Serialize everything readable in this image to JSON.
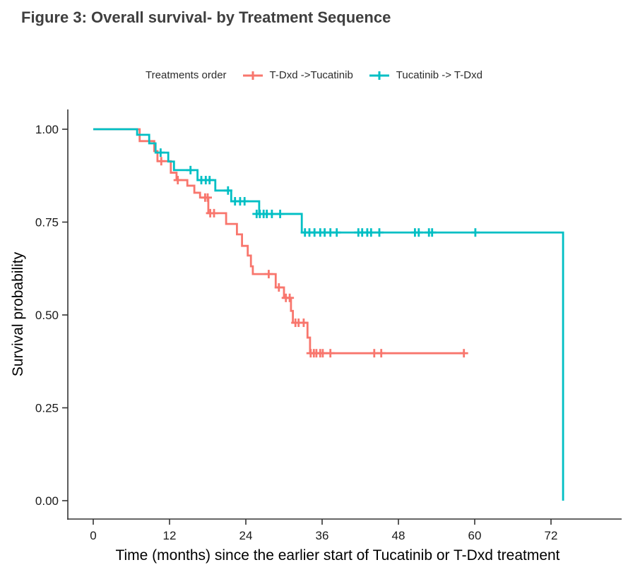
{
  "title": "Figure 3: Overall survival- by Treatment Sequence",
  "chart_data": {
    "type": "line",
    "subtype": "kaplan-meier-step",
    "title": "Figure 3: Overall survival- by Treatment Sequence",
    "legend_title": "Treatments order",
    "legend_position": "top-center",
    "xlabel": "Time (months) since the earlier start of Tucatinib or T-Dxd treatment",
    "ylabel": "Survival probability",
    "xlim": [
      0,
      78
    ],
    "ylim": [
      0,
      1
    ],
    "xticks": [
      0,
      12,
      24,
      36,
      48,
      60,
      72
    ],
    "yticks": [
      "0.00",
      "0.25",
      "0.50",
      "0.75",
      "1.00"
    ],
    "grid": "off",
    "axis_color": "#333333",
    "background": "#ffffff",
    "series": [
      {
        "name": "T-Dxd ->Tucatinib",
        "color": "#F8766D",
        "steps": [
          [
            0,
            1.0
          ],
          [
            7.3,
            0.968
          ],
          [
            9.6,
            0.941
          ],
          [
            10.1,
            0.914
          ],
          [
            12.2,
            0.883
          ],
          [
            13.1,
            0.863
          ],
          [
            14.8,
            0.848
          ],
          [
            15.9,
            0.829
          ],
          [
            16.8,
            0.816
          ],
          [
            18.1,
            0.774
          ],
          [
            20.9,
            0.745
          ],
          [
            22.6,
            0.717
          ],
          [
            23.4,
            0.686
          ],
          [
            24.3,
            0.66
          ],
          [
            24.8,
            0.631
          ],
          [
            25.1,
            0.61
          ],
          [
            28.7,
            0.574
          ],
          [
            30.0,
            0.546
          ],
          [
            31.1,
            0.511
          ],
          [
            31.4,
            0.479
          ],
          [
            33.7,
            0.439
          ],
          [
            34.1,
            0.397
          ]
        ],
        "end_time": 58.3,
        "censors": [
          [
            10.7,
            0.914
          ],
          [
            13.3,
            0.863
          ],
          [
            17.6,
            0.816
          ],
          [
            18.0,
            0.816
          ],
          [
            18.4,
            0.774
          ],
          [
            19.0,
            0.774
          ],
          [
            27.6,
            0.61
          ],
          [
            29.2,
            0.574
          ],
          [
            30.3,
            0.546
          ],
          [
            30.9,
            0.546
          ],
          [
            31.8,
            0.479
          ],
          [
            32.3,
            0.479
          ],
          [
            33.1,
            0.479
          ],
          [
            34.2,
            0.397
          ],
          [
            34.7,
            0.397
          ],
          [
            35.1,
            0.397
          ],
          [
            35.7,
            0.397
          ],
          [
            36.1,
            0.397
          ],
          [
            37.3,
            0.397
          ],
          [
            44.2,
            0.397
          ],
          [
            45.3,
            0.397
          ],
          [
            58.3,
            0.397
          ]
        ]
      },
      {
        "name": "Tucatinib -> T-Dxd",
        "color": "#00BFC4",
        "steps": [
          [
            0,
            1.0
          ],
          [
            6.9,
            0.985
          ],
          [
            8.8,
            0.962
          ],
          [
            9.8,
            0.937
          ],
          [
            11.8,
            0.913
          ],
          [
            12.7,
            0.89
          ],
          [
            16.4,
            0.863
          ],
          [
            19.2,
            0.835
          ],
          [
            21.7,
            0.806
          ],
          [
            26.1,
            0.772
          ],
          [
            32.8,
            0.722
          ],
          [
            73.9,
            0.0
          ]
        ],
        "end_time": null,
        "censors": [
          [
            10.6,
            0.937
          ],
          [
            15.3,
            0.89
          ],
          [
            17.0,
            0.863
          ],
          [
            17.7,
            0.863
          ],
          [
            18.3,
            0.863
          ],
          [
            21.2,
            0.835
          ],
          [
            22.3,
            0.806
          ],
          [
            23.1,
            0.806
          ],
          [
            23.8,
            0.806
          ],
          [
            25.7,
            0.772
          ],
          [
            26.2,
            0.772
          ],
          [
            26.8,
            0.772
          ],
          [
            27.3,
            0.772
          ],
          [
            28.1,
            0.772
          ],
          [
            29.4,
            0.772
          ],
          [
            33.3,
            0.722
          ],
          [
            34.0,
            0.722
          ],
          [
            34.8,
            0.722
          ],
          [
            35.7,
            0.722
          ],
          [
            36.4,
            0.722
          ],
          [
            37.3,
            0.722
          ],
          [
            38.3,
            0.722
          ],
          [
            41.7,
            0.722
          ],
          [
            42.3,
            0.722
          ],
          [
            43.1,
            0.722
          ],
          [
            43.7,
            0.722
          ],
          [
            45.0,
            0.722
          ],
          [
            50.6,
            0.722
          ],
          [
            51.2,
            0.722
          ],
          [
            52.8,
            0.722
          ],
          [
            53.3,
            0.722
          ],
          [
            60.1,
            0.722
          ]
        ]
      }
    ]
  }
}
